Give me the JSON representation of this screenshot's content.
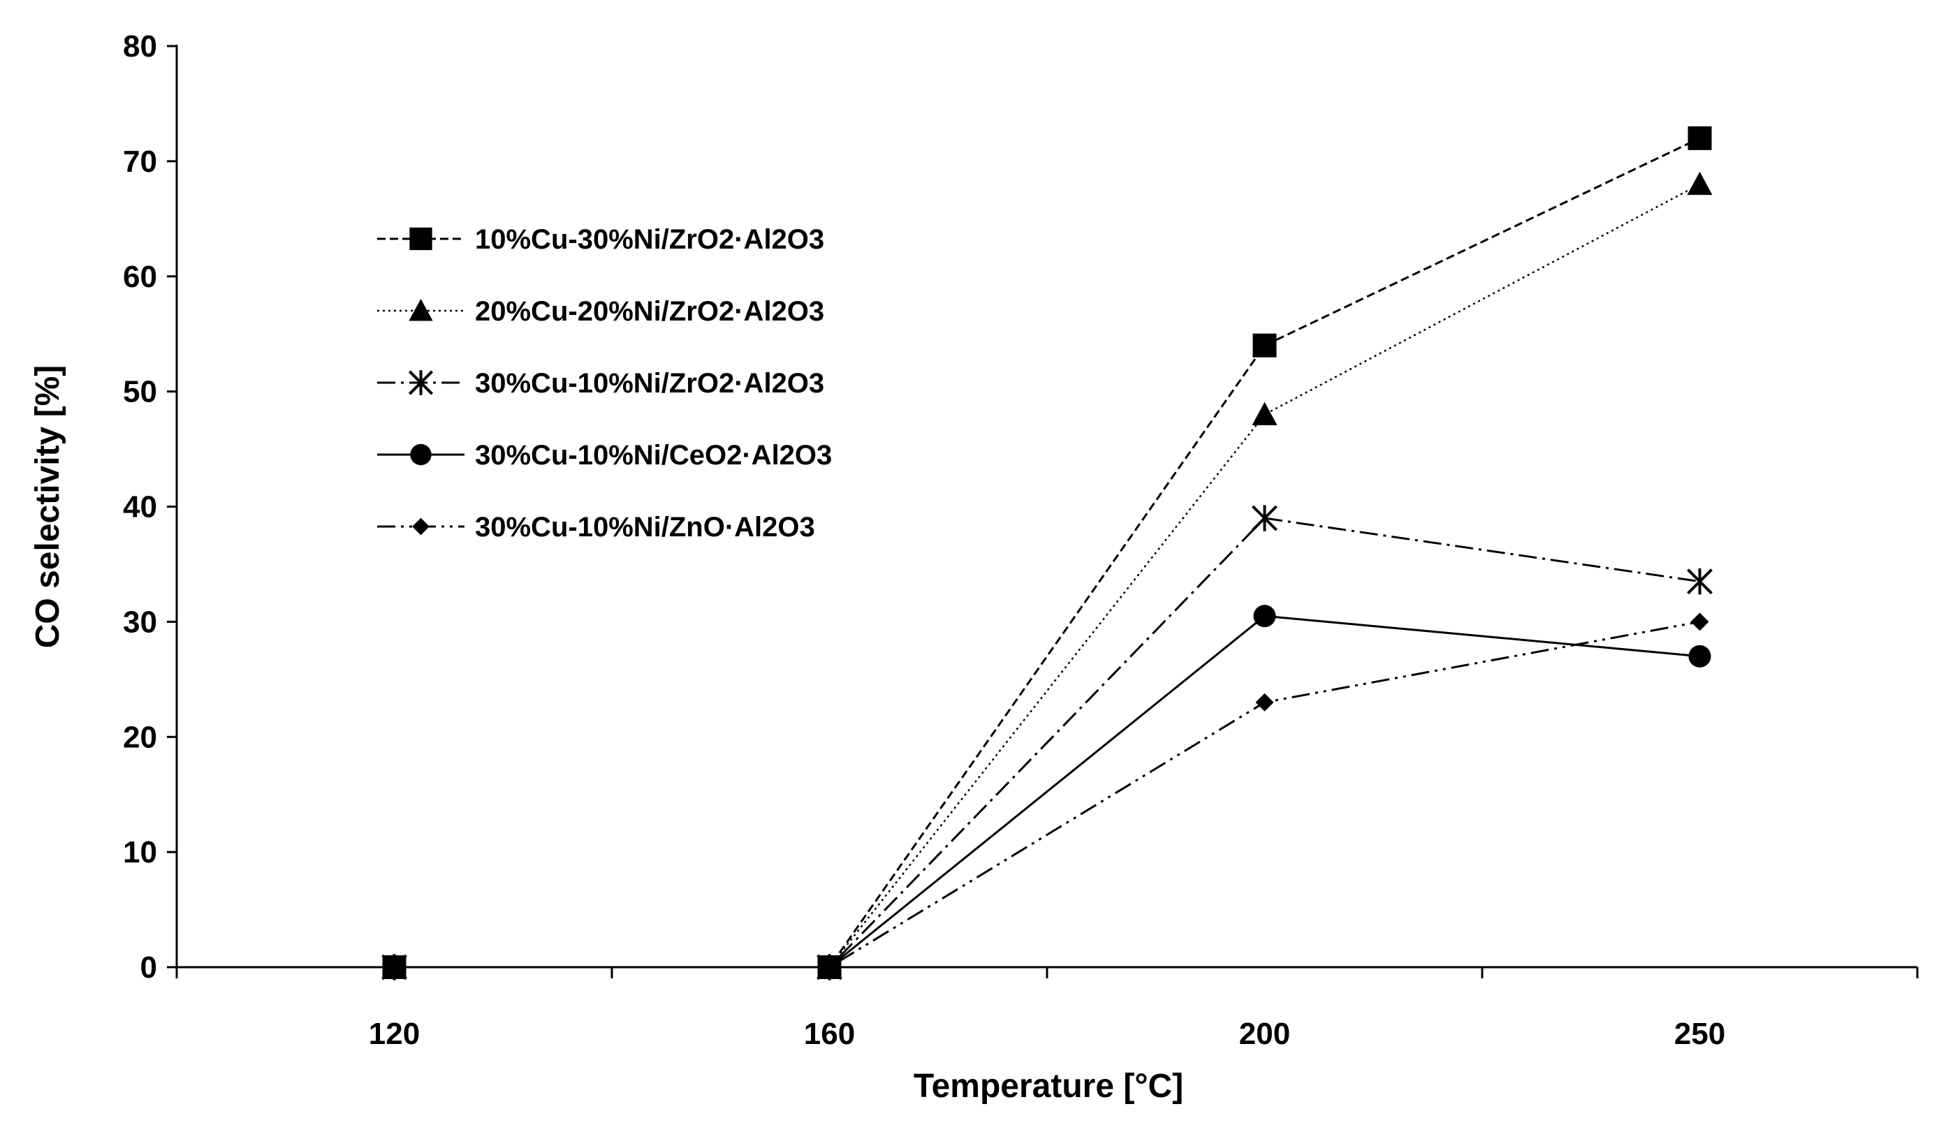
{
  "chart_data": {
    "type": "line",
    "title": "",
    "xlabel": "Temperature [°C]",
    "ylabel": "CO selectivity [%]",
    "categories": [
      "120",
      "160",
      "200",
      "250"
    ],
    "ylim": [
      0,
      80
    ],
    "yticks": [
      0,
      10,
      20,
      30,
      40,
      50,
      60,
      70,
      80
    ],
    "grid": false,
    "legend_position": "upper-left",
    "series": [
      {
        "name": "10%Cu-30%Ni/ZrO2·Al2O3",
        "marker": "square",
        "line_style": "dashed",
        "values": [
          0,
          0,
          54,
          72
        ]
      },
      {
        "name": "20%Cu-20%Ni/ZrO2·Al2O3",
        "marker": "triangle",
        "line_style": "dotted",
        "values": [
          0,
          0,
          48,
          68
        ]
      },
      {
        "name": "30%Cu-10%Ni/ZrO2·Al2O3",
        "marker": "asterisk",
        "line_style": "dash-dot",
        "values": [
          0,
          0,
          39,
          33.5
        ]
      },
      {
        "name": "30%Cu-10%Ni/CeO2·Al2O3",
        "marker": "circle",
        "line_style": "solid",
        "values": [
          0,
          0,
          30.5,
          27
        ]
      },
      {
        "name": "30%Cu-10%Ni/ZnO·Al2O3",
        "marker": "diamond",
        "line_style": "dash-dot-dot",
        "values": [
          0,
          0,
          23,
          30
        ]
      }
    ],
    "colors": {
      "line": "#000000",
      "marker": "#000000",
      "background": "#ffffff"
    }
  }
}
